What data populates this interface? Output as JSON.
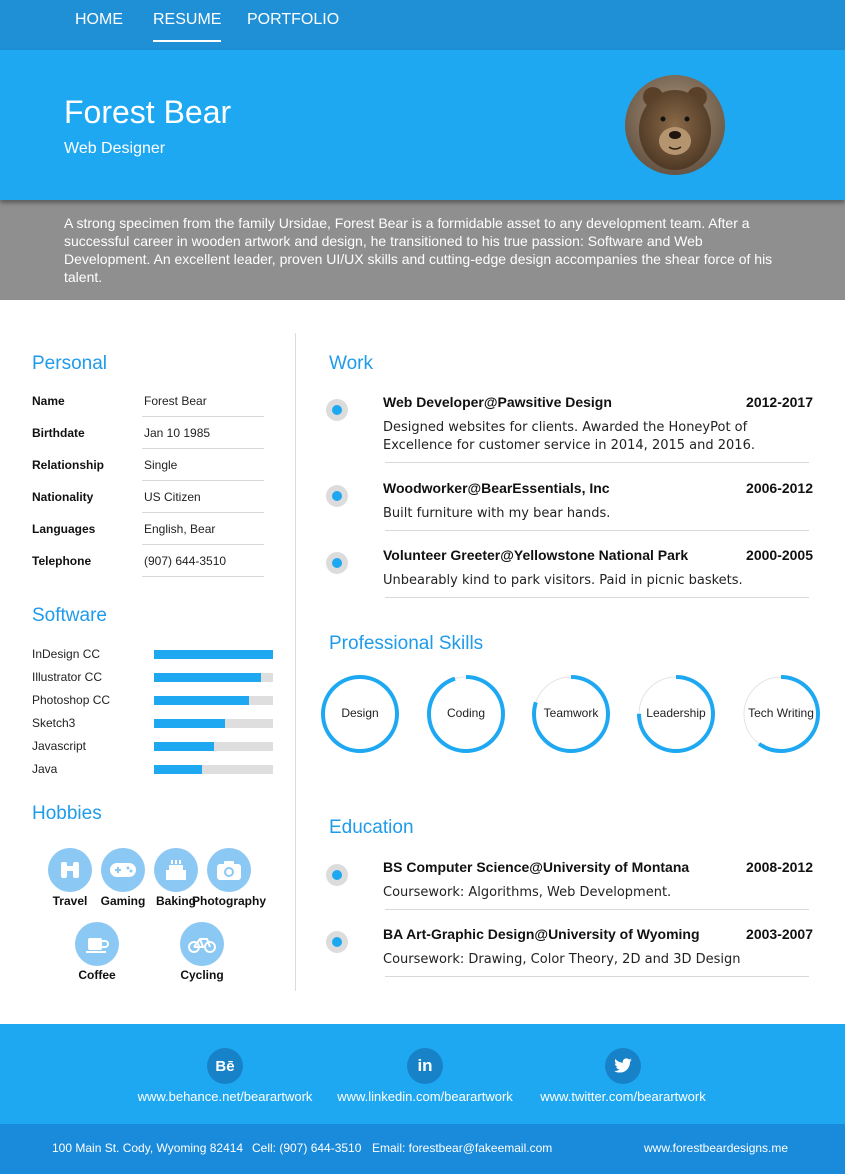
{
  "nav": {
    "items": [
      {
        "label": "HOME",
        "active": false
      },
      {
        "label": "RESUME",
        "active": true
      },
      {
        "label": "PORTFOLIO",
        "active": false
      }
    ]
  },
  "header": {
    "name": "Forest Bear",
    "role": "Web Designer"
  },
  "summary": "A strong specimen from the family Ursidae, Forest Bear is a formidable asset to any development team. After a successful career in wooden artwork and design, he transitioned to his true passion: Software and Web Development. An excellent leader, proven UI/UX skills and cutting-edge design accompanies the shear force of his talent.",
  "personal": {
    "title": "Personal",
    "rows": [
      {
        "label": "Name",
        "value": "Forest Bear"
      },
      {
        "label": "Birthdate",
        "value": "Jan 10 1985"
      },
      {
        "label": "Relationship",
        "value": "Single"
      },
      {
        "label": "Nationality",
        "value": "US Citizen"
      },
      {
        "label": "Languages",
        "value": "English, Bear"
      },
      {
        "label": "Telephone",
        "value": "(907) 644-3510"
      }
    ]
  },
  "software": {
    "title": "Software",
    "items": [
      {
        "label": "InDesign CC",
        "level": 1.0
      },
      {
        "label": "Illustrator CC",
        "level": 0.9
      },
      {
        "label": "Photoshop CC",
        "level": 0.8
      },
      {
        "label": "Sketch3",
        "level": 0.6
      },
      {
        "label": "Javascript",
        "level": 0.5
      },
      {
        "label": "Java",
        "level": 0.4
      }
    ]
  },
  "hobbies": {
    "title": "Hobbies",
    "items": [
      {
        "label": "Travel",
        "icon": "binoculars-icon"
      },
      {
        "label": "Gaming",
        "icon": "gamepad-icon"
      },
      {
        "label": "Baking",
        "icon": "cake-icon"
      },
      {
        "label": "Photography",
        "icon": "camera-icon"
      },
      {
        "label": "Coffee",
        "icon": "coffee-cup-icon"
      },
      {
        "label": "Cycling",
        "icon": "bicycle-icon"
      }
    ]
  },
  "work": {
    "title": "Work",
    "entries": [
      {
        "title": "Web Developer@Pawsitive Design",
        "years": "2012-2017",
        "desc": "Designed websites for clients. Awarded the HoneyPot of Excellence for customer service in 2014, 2015 and 2016."
      },
      {
        "title": "Woodworker@BearEssentials, Inc",
        "years": "2006-2012",
        "desc": "Built furniture with my bear hands."
      },
      {
        "title": "Volunteer Greeter@Yellowstone National Park",
        "years": "2000-2005",
        "desc": "Unbearably kind to park visitors. Paid in picnic baskets."
      }
    ]
  },
  "skills": {
    "title": "Professional Skills",
    "items": [
      {
        "label": "Design",
        "level": 1.0
      },
      {
        "label": "Coding",
        "level": 0.95
      },
      {
        "label": "Teamwork",
        "level": 0.8
      },
      {
        "label": "Leadership",
        "level": 0.75
      },
      {
        "label": "Tech Writing",
        "level": 0.6
      }
    ]
  },
  "education": {
    "title": "Education",
    "entries": [
      {
        "title": "BS Computer Science@University of Montana",
        "years": "2008-2012",
        "desc": "Coursework: Algorithms, Web Development."
      },
      {
        "title": "BA Art-Graphic Design@University of Wyoming",
        "years": "2003-2007",
        "desc": "Coursework: Drawing, Color Theory, 2D and 3D Design"
      }
    ]
  },
  "social": [
    {
      "icon": "behance-icon",
      "glyph": "Bē",
      "url": "www.behance.net/bearartwork"
    },
    {
      "icon": "linkedin-icon",
      "glyph": "in",
      "url": "www.linkedin.com/bearartwork"
    },
    {
      "icon": "twitter-icon",
      "glyph": "",
      "url": "www.twitter.com/bearartwork"
    }
  ],
  "footer": {
    "address": "100 Main St. Cody, Wyoming 82414",
    "cell": "Cell: (907) 644-3510",
    "email": "Email: forestbear@fakeemail.com",
    "website": "www.forestbeardesigns.me"
  },
  "colors": {
    "nav": "#1f8fd6",
    "hero": "#1fa8f2",
    "accent": "#1f9bea",
    "summary_bg": "#8f8f8f",
    "footer_bottom": "#1a8bdb"
  }
}
